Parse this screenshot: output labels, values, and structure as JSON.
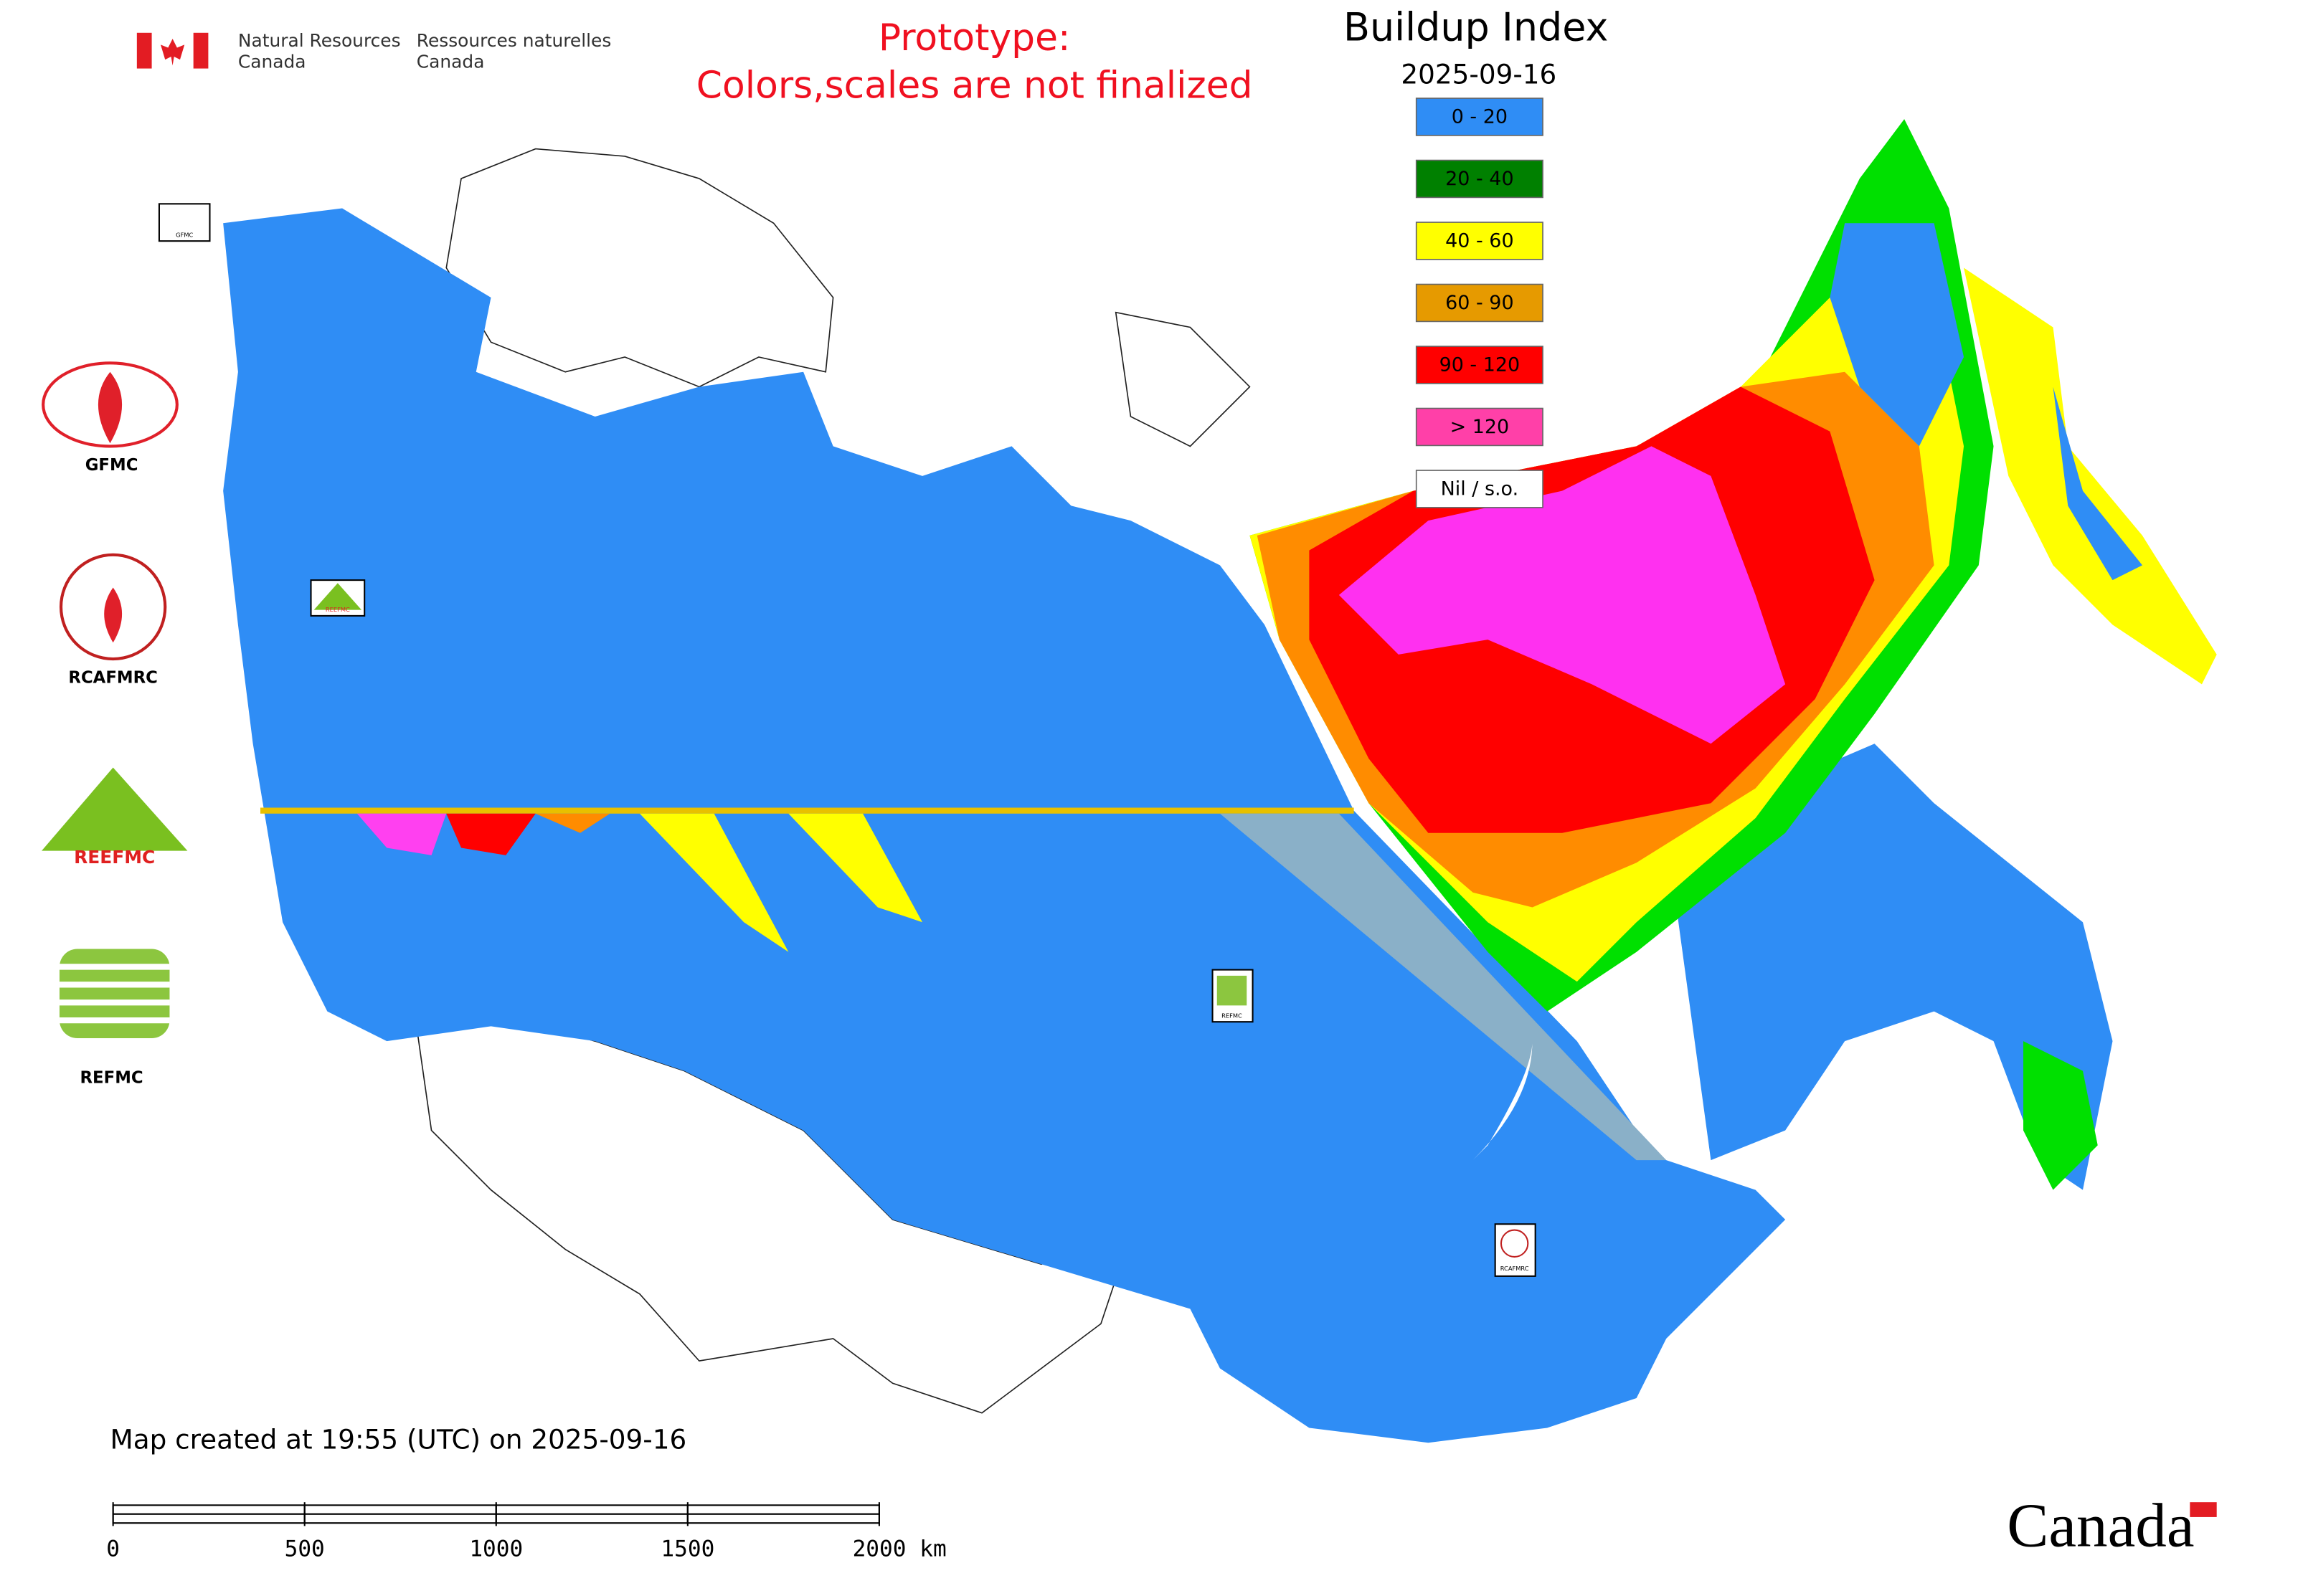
{
  "header": {
    "department_en": [
      "Natural Resources",
      "Canada"
    ],
    "department_fr": [
      "Ressources naturelles",
      "Canada"
    ],
    "notice": [
      "Prototype:",
      "Colors,scales are not finalized"
    ]
  },
  "legend": {
    "title": "Buildup Index",
    "date": "2025-09-16",
    "items": [
      {
        "label": "0 - 20",
        "color": "#2f8df5"
      },
      {
        "label": "20 - 40",
        "color": "#008000"
      },
      {
        "label": "40 - 60",
        "color": "#ffff00"
      },
      {
        "label": "60 - 90",
        "color": "#e69a00"
      },
      {
        "label": "90 - 120",
        "color": "#ff0000"
      },
      {
        "label": "> 120",
        "color": "#ff40a8"
      },
      {
        "label": "Nil / s.o.",
        "color": "#ffffff"
      }
    ]
  },
  "logos": [
    "GFMC",
    "RCAFMRC",
    "REEFMC",
    "REFMC"
  ],
  "map_logos": [
    "GFMC",
    "REEFMC",
    "REFMC",
    "RCAFMRC"
  ],
  "footer": {
    "created": "Map created at 19:55 (UTC) on 2025-09-16",
    "wordmark": "Canada"
  },
  "scale_bar": {
    "ticks": [
      0,
      500,
      1000,
      1500,
      {
        "value": 2000,
        "label": "2000 km"
      }
    ]
  }
}
